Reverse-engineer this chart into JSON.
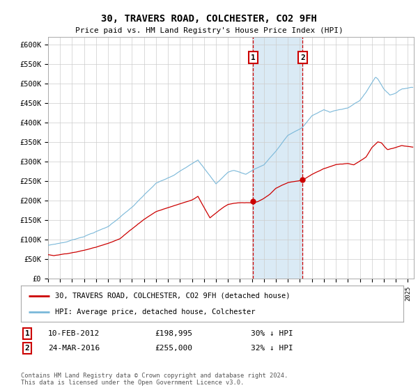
{
  "title": "30, TRAVERS ROAD, COLCHESTER, CO2 9FH",
  "subtitle": "Price paid vs. HM Land Registry's House Price Index (HPI)",
  "footnote": "Contains HM Land Registry data © Crown copyright and database right 2024.\nThis data is licensed under the Open Government Licence v3.0.",
  "legend_line1": "30, TRAVERS ROAD, COLCHESTER, CO2 9FH (detached house)",
  "legend_line2": "HPI: Average price, detached house, Colchester",
  "transaction1_date": "10-FEB-2012",
  "transaction1_price": "£198,995",
  "transaction1_hpi": "30% ↓ HPI",
  "transaction2_date": "24-MAR-2016",
  "transaction2_price": "£255,000",
  "transaction2_hpi": "32% ↓ HPI",
  "hpi_color": "#7ab8d9",
  "price_color": "#cc0000",
  "marker_color": "#cc0000",
  "vline_color": "#cc0000",
  "shade_color": "#daeaf5",
  "grid_color": "#cccccc",
  "background_color": "#ffffff",
  "ylim": [
    0,
    620000
  ],
  "yticks": [
    0,
    50000,
    100000,
    150000,
    200000,
    250000,
    300000,
    350000,
    400000,
    450000,
    500000,
    550000,
    600000
  ],
  "ytick_labels": [
    "£0",
    "£50K",
    "£100K",
    "£150K",
    "£200K",
    "£250K",
    "£300K",
    "£350K",
    "£400K",
    "£450K",
    "£500K",
    "£550K",
    "£600K"
  ],
  "xlim_start": 1995.0,
  "xlim_end": 2025.5,
  "transaction1_x": 2012.1,
  "transaction2_x": 2016.23,
  "transaction1_y": 198995,
  "transaction2_y": 255000
}
